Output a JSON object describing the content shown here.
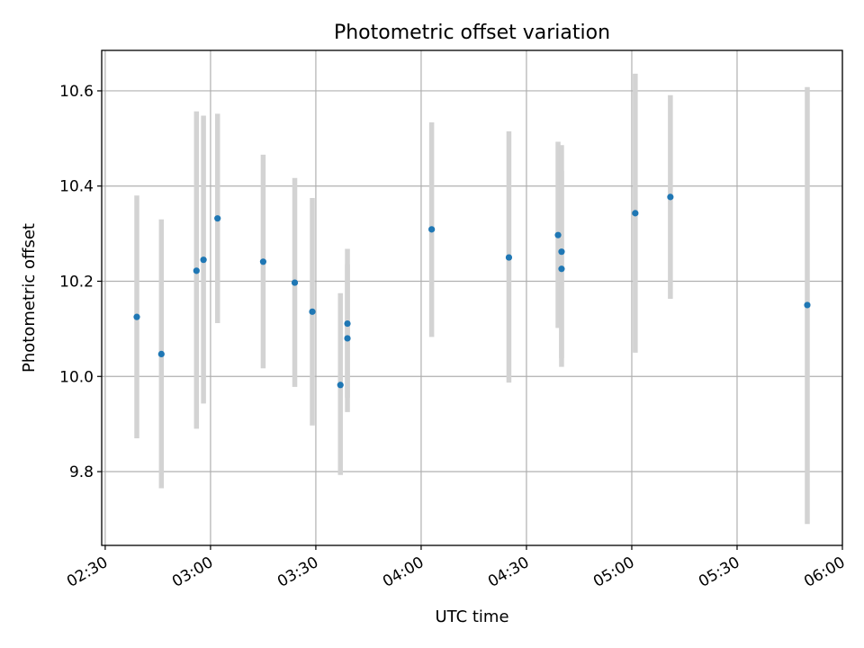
{
  "chart_data": {
    "type": "scatter",
    "title": "Photometric offset variation",
    "xlabel": "UTC time",
    "ylabel": "Photometric offset",
    "x_unit": "HH:MM UTC",
    "xlim": [
      "02:29",
      "06:00"
    ],
    "ylim": [
      9.645,
      10.685
    ],
    "x_ticks": [
      "02:30",
      "03:00",
      "03:30",
      "04:00",
      "04:30",
      "05:00",
      "05:30",
      "06:00"
    ],
    "y_ticks": [
      9.8,
      10.0,
      10.2,
      10.4,
      10.6
    ],
    "y_tick_labels": [
      "9.8",
      "10.0",
      "10.2",
      "10.4",
      "10.6"
    ],
    "grid": true,
    "legend": "none",
    "colors": {
      "marker": "#1f77b4",
      "errorbar": "#d3d3d3"
    },
    "points": [
      {
        "x": "02:39",
        "y": 10.125,
        "y_low": 9.87,
        "y_high": 10.38
      },
      {
        "x": "02:46",
        "y": 10.047,
        "y_low": 9.765,
        "y_high": 10.33
      },
      {
        "x": "02:56",
        "y": 10.222,
        "y_low": 9.89,
        "y_high": 10.557
      },
      {
        "x": "02:58",
        "y": 10.245,
        "y_low": 9.943,
        "y_high": 10.548
      },
      {
        "x": "03:02",
        "y": 10.332,
        "y_low": 10.112,
        "y_high": 10.552
      },
      {
        "x": "03:15",
        "y": 10.241,
        "y_low": 10.017,
        "y_high": 10.466
      },
      {
        "x": "03:24",
        "y": 10.197,
        "y_low": 9.978,
        "y_high": 10.417
      },
      {
        "x": "03:29",
        "y": 10.136,
        "y_low": 9.897,
        "y_high": 10.375
      },
      {
        "x": "03:37",
        "y": 9.982,
        "y_low": 9.793,
        "y_high": 10.175
      },
      {
        "x": "03:39",
        "y": 10.08,
        "y_low": 9.925,
        "y_high": 10.236
      },
      {
        "x": "03:39",
        "y": 10.111,
        "y_low": 9.955,
        "y_high": 10.268
      },
      {
        "x": "04:03",
        "y": 10.309,
        "y_low": 10.083,
        "y_high": 10.534
      },
      {
        "x": "04:25",
        "y": 10.25,
        "y_low": 9.987,
        "y_high": 10.515
      },
      {
        "x": "04:39",
        "y": 10.297,
        "y_low": 10.102,
        "y_high": 10.493
      },
      {
        "x": "04:40",
        "y": 10.262,
        "y_low": 10.038,
        "y_high": 10.486
      },
      {
        "x": "04:40",
        "y": 10.226,
        "y_low": 10.02,
        "y_high": 10.432
      },
      {
        "x": "05:01",
        "y": 10.343,
        "y_low": 10.05,
        "y_high": 10.636
      },
      {
        "x": "05:11",
        "y": 10.377,
        "y_low": 10.163,
        "y_high": 10.591
      },
      {
        "x": "05:50",
        "y": 10.15,
        "y_low": 9.69,
        "y_high": 10.608
      }
    ]
  }
}
